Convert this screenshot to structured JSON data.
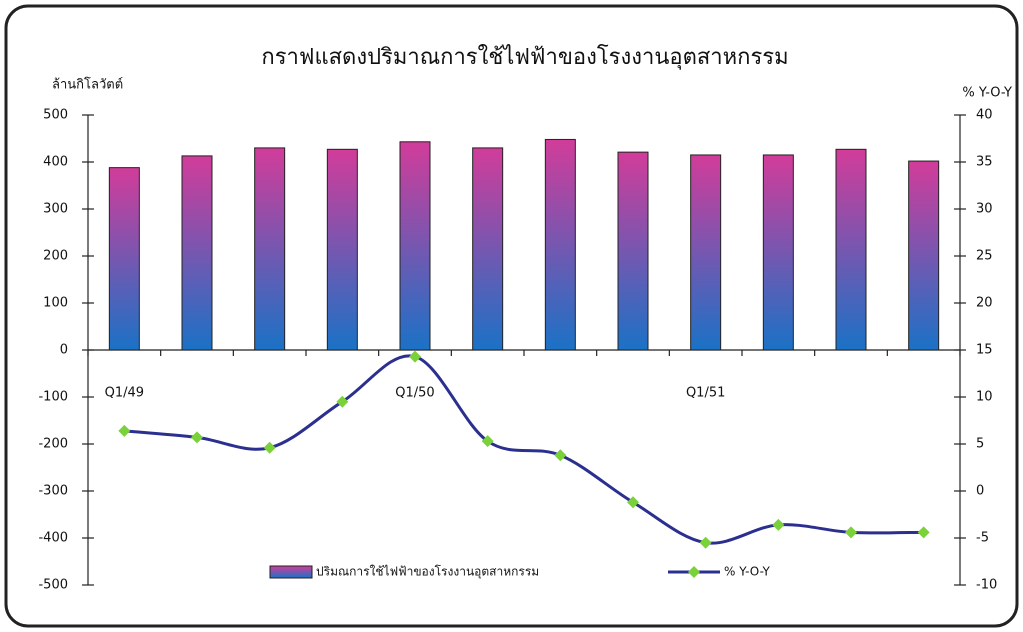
{
  "chart_data": {
    "type": "bar_line",
    "title": "กราฟแสดงปริมาณการใช้ไฟฟ้าของโรงงานอุตสาหกรรม",
    "y_label": "ล้านกิโลวัตต์",
    "y2_label": "% Y-O-Y",
    "categories": [
      "Q1/49",
      null,
      null,
      null,
      "Q1/50",
      null,
      null,
      null,
      "Q1/51",
      null,
      null,
      null
    ],
    "series": [
      {
        "name": "ปริมณการใช้ไฟฟ้าของโรงงานอุตสาหกรรม",
        "type": "bar",
        "color": "#d23c9a",
        "gradient_to": "#1a72c6",
        "values": [
          388,
          413,
          430,
          427,
          443,
          430,
          448,
          421,
          415,
          415,
          427,
          402
        ]
      },
      {
        "name": "% Y-O-Y",
        "type": "line",
        "axis": "y2",
        "color": "#2b2f8f",
        "marker_color": "#7bd13a",
        "values": [
          6.4,
          5.7,
          4.6,
          9.5,
          14.3,
          5.3,
          3.8,
          -1.2,
          -5.5,
          -3.6,
          -4.4,
          -4.4
        ]
      }
    ],
    "ylim": [
      -500,
      500
    ],
    "yticks": [
      -500,
      -400,
      -300,
      -200,
      -100,
      0,
      100,
      200,
      300,
      400,
      500
    ],
    "y2lim": [
      -10,
      40
    ],
    "y2ticks": [
      -10,
      -5,
      0,
      5,
      10,
      15,
      20,
      25,
      30,
      35,
      40
    ]
  }
}
